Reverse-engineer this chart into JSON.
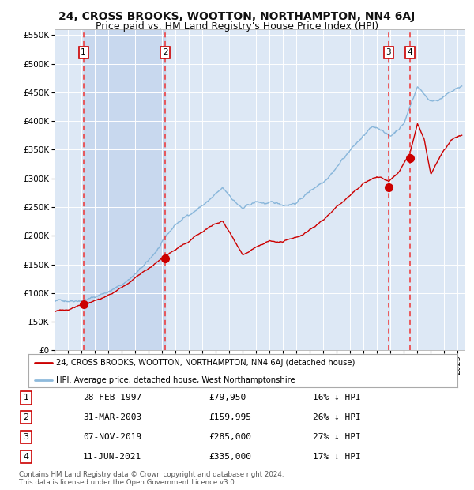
{
  "title": "24, CROSS BROOKS, WOOTTON, NORTHAMPTON, NN4 6AJ",
  "subtitle": "Price paid vs. HM Land Registry's House Price Index (HPI)",
  "red_label": "24, CROSS BROOKS, WOOTTON, NORTHAMPTON, NN4 6AJ (detached house)",
  "blue_label": "HPI: Average price, detached house, West Northamptonshire",
  "footer1": "Contains HM Land Registry data © Crown copyright and database right 2024.",
  "footer2": "This data is licensed under the Open Government Licence v3.0.",
  "transactions": [
    {
      "id": 1,
      "date": "28-FEB-1997",
      "price": 79950,
      "pct": "16% ↓ HPI",
      "year_x": 1997.15
    },
    {
      "id": 2,
      "date": "31-MAR-2003",
      "price": 159995,
      "pct": "26% ↓ HPI",
      "year_x": 2003.25
    },
    {
      "id": 3,
      "date": "07-NOV-2019",
      "price": 285000,
      "pct": "27% ↓ HPI",
      "year_x": 2019.85
    },
    {
      "id": 4,
      "date": "11-JUN-2021",
      "price": 335000,
      "pct": "17% ↓ HPI",
      "year_x": 2021.45
    }
  ],
  "yticks": [
    0,
    50000,
    100000,
    150000,
    200000,
    250000,
    300000,
    350000,
    400000,
    450000,
    500000,
    550000
  ],
  "ylim": [
    0,
    560000
  ],
  "xlim_start": 1995.0,
  "xlim_end": 2025.5,
  "background_color": "#ffffff",
  "plot_bg_color": "#dde8f5",
  "grid_color": "#ffffff",
  "red_color": "#cc0000",
  "blue_color": "#7aaed6",
  "dashed_color": "#ee3333",
  "shade_color": "#c8d8ee",
  "title_fontsize": 10,
  "subtitle_fontsize": 9
}
